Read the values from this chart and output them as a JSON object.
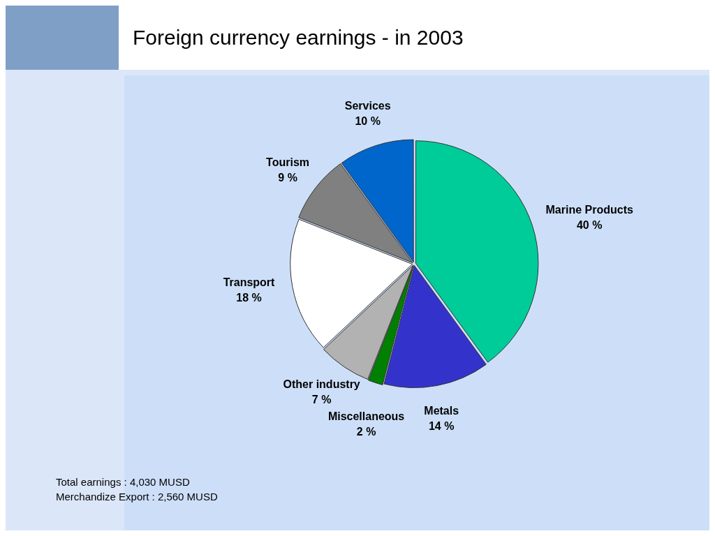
{
  "chart_data": {
    "type": "pie",
    "title": "Foreign currency earnings - in 2003",
    "categories": [
      "Marine Products",
      "Metals",
      "Miscellaneous",
      "Other industry",
      "Transport",
      "Tourism",
      "Services"
    ],
    "values": [
      40,
      14,
      2,
      7,
      18,
      9,
      10
    ],
    "colors": [
      "#00cc99",
      "#3333cc",
      "#008000",
      "#b2b2b2",
      "#ffffff",
      "#808080",
      "#0066cc"
    ],
    "value_labels": [
      "40 %",
      "14 %",
      "2 %",
      "7 %",
      "18 %",
      "9 %",
      "10 %"
    ],
    "legend": false,
    "annotations": [
      "Total earnings : 4,030 MUSD",
      "Merchandize Export : 2,560 MUSD"
    ]
  }
}
